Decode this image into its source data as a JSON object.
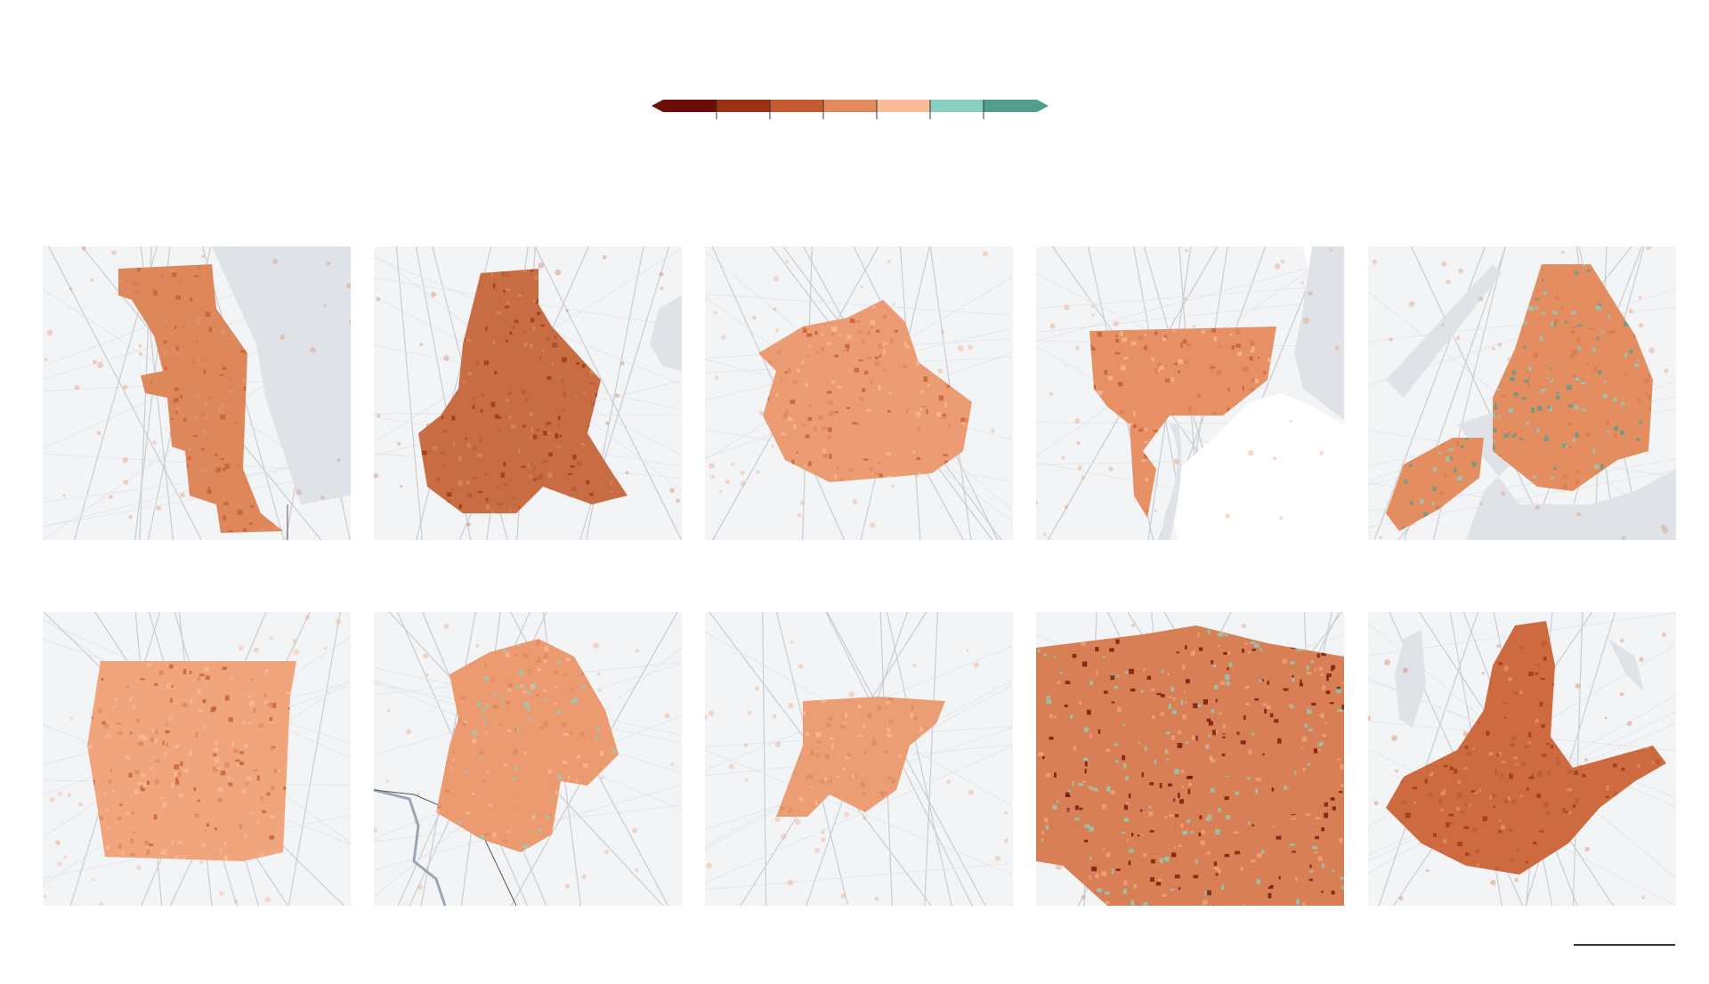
{
  "legend": {
    "colors": [
      "#6b0d06",
      "#9a3316",
      "#c45a30",
      "#e08a5e",
      "#f9bb98",
      "#88d1c2",
      "#529e8d"
    ]
  },
  "palette": {
    "land": "#f3f4f6",
    "water": "#dfe2e7",
    "road_major": "#c9ccd1",
    "road_minor": "#e4e6ea",
    "boundary": "#555555"
  },
  "maps": [
    {
      "id": "map-1",
      "dominant_color": "#dd875b",
      "speckle_colors": [
        "#c45a30",
        "#e59369",
        "#d57b4f"
      ],
      "water": "lake-east",
      "shape": "chicago"
    },
    {
      "id": "map-2",
      "dominant_color": "#c86d43",
      "speckle_colors": [
        "#9a3316",
        "#dd875b",
        "#b55a33"
      ],
      "water": "lake-east-small",
      "shape": "dallas"
    },
    {
      "id": "map-3",
      "dominant_color": "#ec9c72",
      "speckle_colors": [
        "#c45a30",
        "#f9bb98",
        "#dd875b"
      ],
      "water": "none",
      "shape": "blob"
    },
    {
      "id": "map-4",
      "dominant_color": "#e79066",
      "speckle_colors": [
        "#d57b4f",
        "#f9bb98",
        "#c45a30"
      ],
      "water": "river-east",
      "shape": "detroit"
    },
    {
      "id": "map-5",
      "dominant_color": "#e38d60",
      "speckle_colors": [
        "#88d1c2",
        "#d57b4f",
        "#529e8d"
      ],
      "water": "harbor",
      "shape": "nyc"
    },
    {
      "id": "map-6",
      "dominant_color": "#f0a57c",
      "speckle_colors": [
        "#dd875b",
        "#f9bb98",
        "#c45a30"
      ],
      "water": "none",
      "shape": "square"
    },
    {
      "id": "map-7",
      "dominant_color": "#ec9a6f",
      "speckle_colors": [
        "#88d1c2",
        "#dd875b",
        "#f9bb98"
      ],
      "water": "river-west",
      "shape": "austin"
    },
    {
      "id": "map-8",
      "dominant_color": "#eb9e74",
      "speckle_colors": [
        "#f9bb98",
        "#dd875b"
      ],
      "water": "none",
      "shape": "denver"
    },
    {
      "id": "map-9",
      "dominant_color": "#d97f55",
      "speckle_colors": [
        "#6b0d06",
        "#88d1c2",
        "#f0a57c"
      ],
      "water": "none",
      "shape": "phoenix"
    },
    {
      "id": "map-10",
      "dominant_color": "#cd6a3f",
      "speckle_colors": [
        "#9a3316",
        "#e59369",
        "#b55a33"
      ],
      "water": "lake-west",
      "shape": "columbus"
    }
  ]
}
